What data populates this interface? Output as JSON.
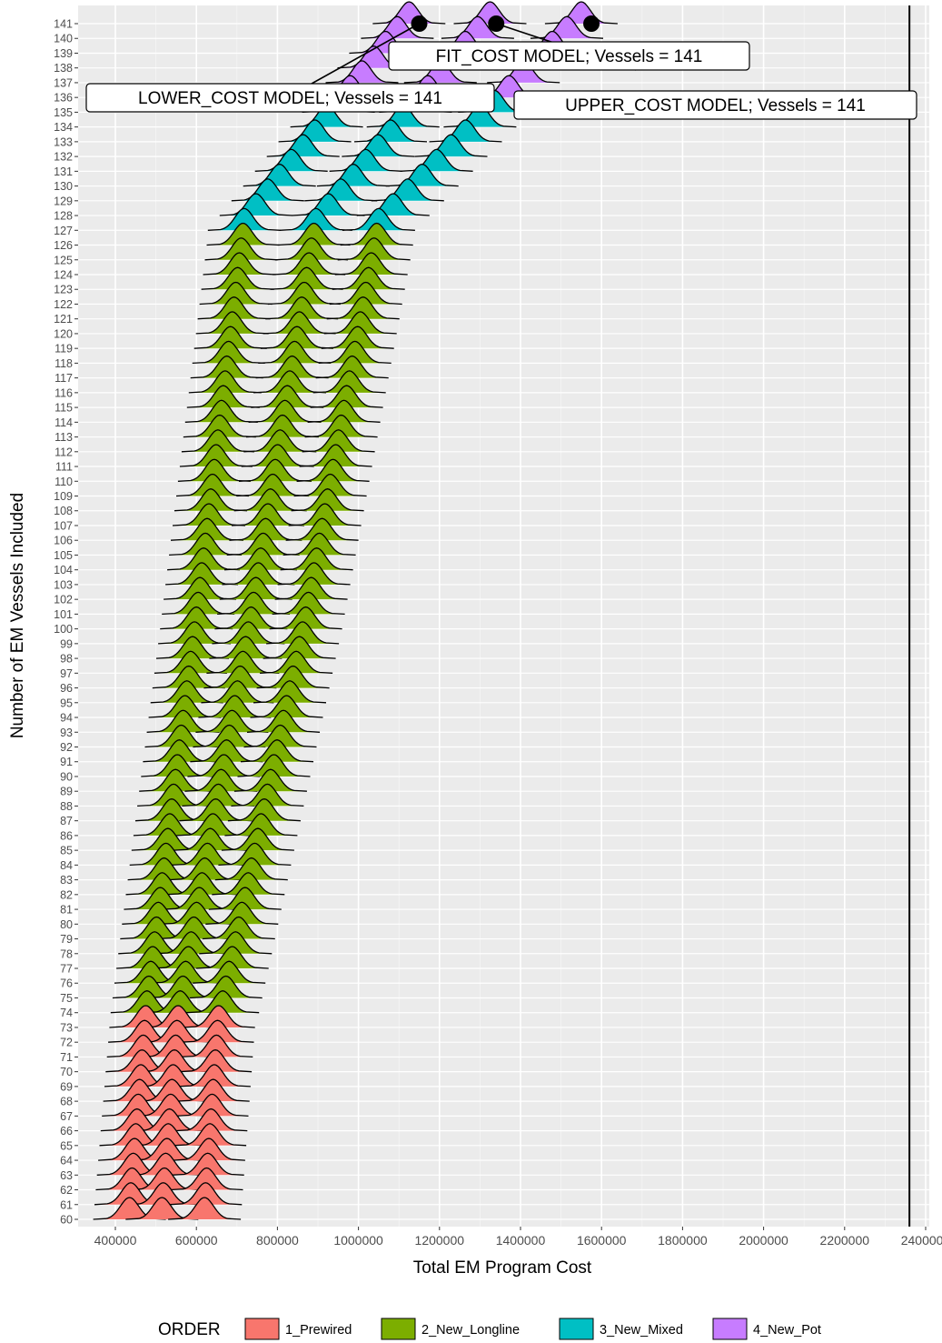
{
  "chart_data": {
    "type": "ridgeline",
    "xlabel": "Total EM Program Cost",
    "ylabel": "Number of EM Vessels Included",
    "xlim": [
      400000,
      2400000
    ],
    "x_ticks": [
      "400000",
      "600000",
      "800000",
      "1000000",
      "1200000",
      "1400000",
      "1600000",
      "1800000",
      "2000000",
      "2200000",
      "2400000"
    ],
    "y_range": [
      60,
      141
    ],
    "grid": true,
    "legend_position": "bottom",
    "legend_title": "ORDER",
    "groups": [
      {
        "name": "1_Prewired",
        "color": "#F8766D",
        "vessels_from": 60,
        "vessels_to": 73
      },
      {
        "name": "2_New_Longline",
        "color": "#7CAE00",
        "vessels_from": 74,
        "vessels_to": 126
      },
      {
        "name": "3_New_Mixed",
        "color": "#00BFC4",
        "vessels_from": 127,
        "vessels_to": 135
      },
      {
        "name": "4_New_Pot",
        "color": "#C77CFF",
        "vessels_from": 136,
        "vessels_to": 141
      }
    ],
    "series": [
      {
        "name": "LOWER_COST MODEL",
        "points": [
          [
            60,
            435000
          ],
          [
            73,
            475000
          ],
          [
            74,
            478000
          ],
          [
            100,
            600000
          ],
          [
            126,
            715000
          ],
          [
            127,
            718000
          ],
          [
            141,
            1125000
          ]
        ]
      },
      {
        "name": "FIT_COST MODEL",
        "points": [
          [
            60,
            515000
          ],
          [
            73,
            555000
          ],
          [
            74,
            560000
          ],
          [
            100,
            735000
          ],
          [
            126,
            890000
          ],
          [
            127,
            895000
          ],
          [
            141,
            1325000
          ]
        ]
      },
      {
        "name": "UPPER_COST MODEL",
        "points": [
          [
            60,
            620000
          ],
          [
            73,
            655000
          ],
          [
            74,
            665000
          ],
          [
            100,
            870000
          ],
          [
            126,
            1045000
          ],
          [
            127,
            1050000
          ],
          [
            141,
            1550000
          ]
        ]
      }
    ],
    "annotations": [
      {
        "label": "LOWER_COST MODEL; Vessels = 141",
        "x": 1150000,
        "y": 141
      },
      {
        "label": "FIT_COST MODEL; Vessels = 141",
        "x": 1340000,
        "y": 141
      },
      {
        "label": "UPPER_COST MODEL; Vessels = 141",
        "x": 1575000,
        "y": 141
      }
    ],
    "reference_line_x": 2360000
  }
}
